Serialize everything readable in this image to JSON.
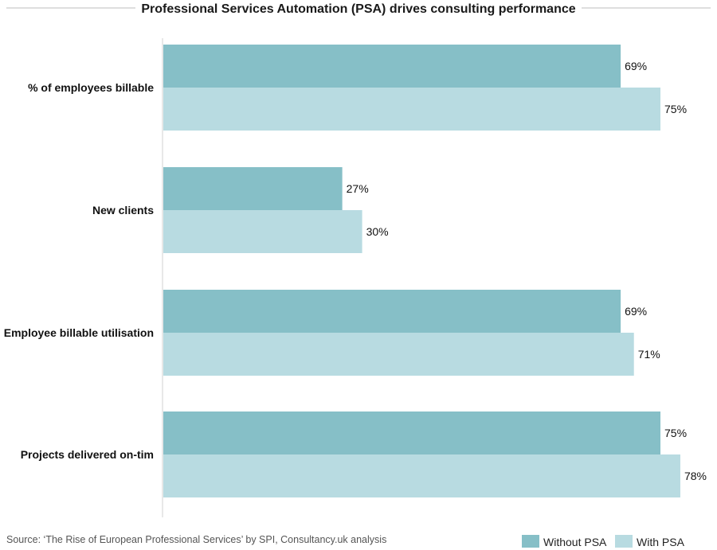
{
  "colors": {
    "without_psa": "#86bfc7",
    "with_psa": "#b8dbe1",
    "axis": "#d0d0d0",
    "title_rule": "#bdbdbd"
  },
  "source": "Source: ‘The Rise of European Professional Services’ by SPI, Consultancy.uk analysis",
  "chart_data": {
    "type": "bar",
    "orientation": "horizontal",
    "title": "Professional Services Automation (PSA) drives consulting performance",
    "categories": [
      "% of employees billable",
      "New clients",
      "Employee billable utilisation",
      "Projects delivered on-tim"
    ],
    "series": [
      {
        "name": "Without PSA",
        "values": [
          69,
          27,
          69,
          75
        ],
        "labels": [
          "69%",
          "27%",
          "69%",
          "75%"
        ]
      },
      {
        "name": "With PSA",
        "values": [
          75,
          30,
          71,
          78
        ],
        "labels": [
          "75%",
          "30%",
          "71%",
          "78%"
        ]
      }
    ],
    "xlim": [
      0,
      100
    ],
    "grid": false,
    "legend_position": "bottom-right"
  }
}
